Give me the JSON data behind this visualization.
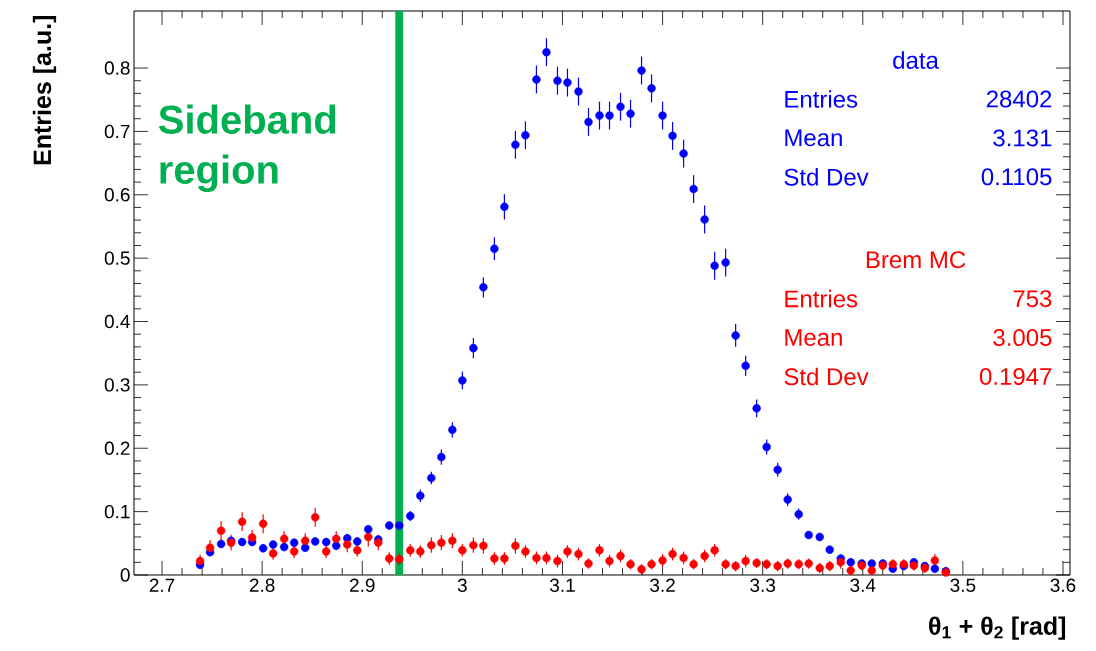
{
  "chart_data": {
    "type": "scatter",
    "xlabel": "θ$_{1}$ + θ$_{2}$ [rad]",
    "ylabel": "Entries [a.u.]",
    "x": [
      2.738,
      2.748,
      2.759,
      2.769,
      2.78,
      2.79,
      2.801,
      2.811,
      2.822,
      2.832,
      2.843,
      2.853,
      2.864,
      2.874,
      2.885,
      2.895,
      2.906,
      2.916,
      2.927,
      2.937,
      2.948,
      2.958,
      2.969,
      2.979,
      2.99,
      3.0,
      3.011,
      3.021,
      3.032,
      3.042,
      3.053,
      3.063,
      3.074,
      3.084,
      3.095,
      3.105,
      3.116,
      3.126,
      3.137,
      3.147,
      3.158,
      3.168,
      3.179,
      3.189,
      3.2,
      3.21,
      3.221,
      3.231,
      3.242,
      3.252,
      3.263,
      3.273,
      3.283,
      3.294,
      3.304,
      3.315,
      3.325,
      3.336,
      3.346,
      3.357,
      3.367,
      3.378,
      3.388,
      3.399,
      3.409,
      3.42,
      3.43,
      3.441,
      3.451,
      3.462,
      3.472,
      3.483
    ],
    "series": [
      {
        "name": "data",
        "color": "#0000ff",
        "values": [
          0.016,
          0.036,
          0.049,
          0.054,
          0.052,
          0.052,
          0.042,
          0.048,
          0.044,
          0.051,
          0.043,
          0.053,
          0.052,
          0.046,
          0.058,
          0.053,
          0.072,
          0.056,
          0.078,
          0.078,
          0.093,
          0.125,
          0.153,
          0.186,
          0.229,
          0.307,
          0.358,
          0.454,
          0.515,
          0.581,
          0.679,
          0.694,
          0.782,
          0.825,
          0.78,
          0.777,
          0.763,
          0.715,
          0.725,
          0.725,
          0.739,
          0.728,
          0.796,
          0.768,
          0.725,
          0.693,
          0.665,
          0.609,
          0.561,
          0.488,
          0.493,
          0.378,
          0.33,
          0.263,
          0.202,
          0.166,
          0.119,
          0.096,
          0.063,
          0.06,
          0.04,
          0.026,
          0.02,
          0.018,
          0.018,
          0.018,
          0.01,
          0.014,
          0.02,
          0.014,
          0.01,
          0.006
        ],
        "errors": [
          0.006,
          0.006,
          0.006,
          0.006,
          0.006,
          0.006,
          0.006,
          0.006,
          0.006,
          0.006,
          0.006,
          0.006,
          0.006,
          0.006,
          0.006,
          0.006,
          0.006,
          0.006,
          0.006,
          0.006,
          0.008,
          0.01,
          0.01,
          0.012,
          0.012,
          0.014,
          0.016,
          0.016,
          0.018,
          0.02,
          0.022,
          0.022,
          0.022,
          0.022,
          0.022,
          0.022,
          0.022,
          0.022,
          0.022,
          0.022,
          0.022,
          0.022,
          0.022,
          0.022,
          0.022,
          0.022,
          0.022,
          0.022,
          0.022,
          0.022,
          0.022,
          0.018,
          0.016,
          0.014,
          0.012,
          0.011,
          0.01,
          0.009,
          0.006,
          0.006,
          0.006,
          0.006,
          0.006,
          0.006,
          0.006,
          0.006,
          0.006,
          0.006,
          0.006,
          0.006,
          0.006,
          0.006
        ]
      },
      {
        "name": "Brem MC",
        "color": "#ff0000",
        "values": [
          0.022,
          0.043,
          0.07,
          0.051,
          0.084,
          0.059,
          0.081,
          0.034,
          0.057,
          0.037,
          0.054,
          0.091,
          0.037,
          0.057,
          0.048,
          0.039,
          0.06,
          0.051,
          0.026,
          0.025,
          0.039,
          0.037,
          0.047,
          0.051,
          0.054,
          0.039,
          0.047,
          0.046,
          0.026,
          0.026,
          0.046,
          0.037,
          0.027,
          0.027,
          0.022,
          0.037,
          0.033,
          0.018,
          0.039,
          0.022,
          0.03,
          0.017,
          0.009,
          0.017,
          0.023,
          0.033,
          0.027,
          0.017,
          0.03,
          0.039,
          0.017,
          0.014,
          0.022,
          0.019,
          0.017,
          0.014,
          0.018,
          0.017,
          0.018,
          0.011,
          0.014,
          0.02,
          0.007,
          0.015,
          0.007,
          0.015,
          0.017,
          0.017,
          0.015,
          0.011,
          0.023,
          0.004
        ],
        "errors": [
          0.01,
          0.012,
          0.015,
          0.012,
          0.015,
          0.012,
          0.015,
          0.01,
          0.012,
          0.01,
          0.012,
          0.015,
          0.01,
          0.012,
          0.012,
          0.01,
          0.015,
          0.012,
          0.01,
          0.01,
          0.01,
          0.01,
          0.012,
          0.012,
          0.012,
          0.01,
          0.012,
          0.012,
          0.01,
          0.01,
          0.012,
          0.01,
          0.01,
          0.01,
          0.01,
          0.01,
          0.01,
          0.008,
          0.01,
          0.01,
          0.01,
          0.008,
          0.008,
          0.008,
          0.01,
          0.01,
          0.01,
          0.008,
          0.01,
          0.01,
          0.008,
          0.008,
          0.01,
          0.008,
          0.008,
          0.008,
          0.008,
          0.008,
          0.008,
          0.008,
          0.008,
          0.01,
          0.008,
          0.008,
          0.008,
          0.008,
          0.008,
          0.008,
          0.008,
          0.008,
          0.01,
          0.008
        ]
      }
    ],
    "annotations": [
      "Entries",
      "28402",
      "Mean",
      "3.131",
      "Std Dev",
      "0.1105",
      "Entries",
      "753",
      "Mean",
      "3.005",
      "Std Dev",
      "0.1947"
    ],
    "ref_lines": [
      {
        "axis": "x",
        "value": 2.937,
        "label": "Sideband region",
        "color": "#00b050"
      }
    ],
    "xlim": [
      2.672,
      3.607
    ],
    "ylim": [
      0,
      0.89
    ],
    "xticks": [
      2.7,
      2.8,
      2.9,
      3,
      3.1,
      3.2,
      3.3,
      3.4,
      3.5,
      3.6
    ],
    "yticks": [
      0,
      0.1,
      0.2,
      0.3,
      0.4,
      0.5,
      0.6,
      0.7,
      0.8
    ],
    "marker": "circle",
    "grid": false,
    "legend": false
  }
}
